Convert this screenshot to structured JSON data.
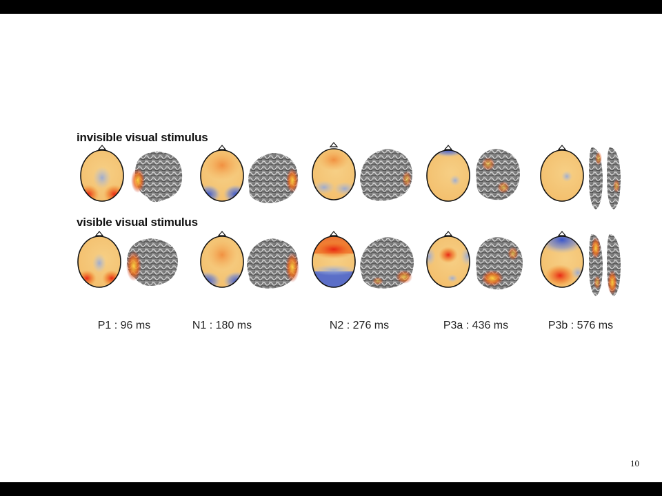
{
  "rows": [
    {
      "label": "invisible visual stimulus"
    },
    {
      "label": "visible visual stimulus"
    }
  ],
  "components": [
    {
      "label": "P1 : 96 ms"
    },
    {
      "label": "N1 : 180 ms"
    },
    {
      "label": "N2 : 276 ms"
    },
    {
      "label": "P3a : 436 ms"
    },
    {
      "label": "P3b : 576 ms"
    }
  ],
  "page_number": "10",
  "colors": {
    "positive_strong": "#e8331a",
    "positive": "#f59b42",
    "neutral": "#f7cf86",
    "negative": "#3f5fd6",
    "negative_weak": "#9fb0d8",
    "cortex": "#7a7a7a",
    "activation": "#f0a020"
  }
}
